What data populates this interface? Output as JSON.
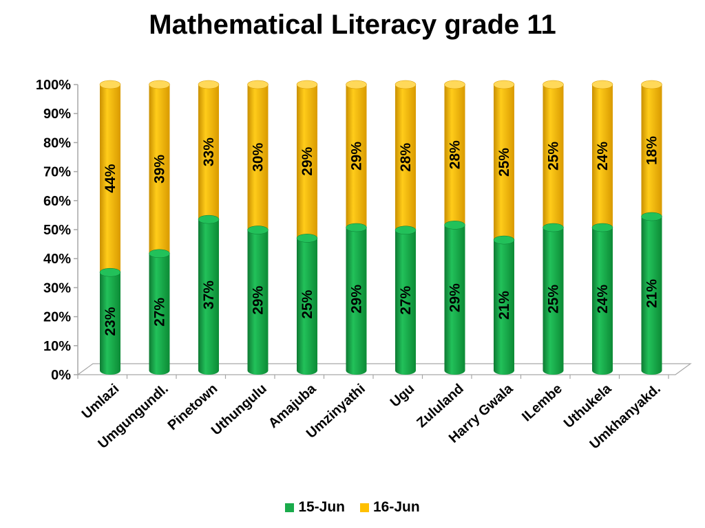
{
  "chart_data": {
    "type": "bar",
    "title": "Mathematical Literacy grade 11",
    "stacking": "percent",
    "orientation": "vertical",
    "categories": [
      "Umlazi",
      "Umgungundl.",
      "Pinetown",
      "Uthungulu",
      "Amajuba",
      "Umzinyathi",
      "Ugu",
      "Zululand",
      "Harry Gwala",
      "ILembe",
      "Uthukela",
      "Umkhanyakd."
    ],
    "series": [
      {
        "name": "15-Jun",
        "color": "#1aab4b",
        "values": [
          23,
          27,
          37,
          29,
          25,
          29,
          27,
          29,
          21,
          25,
          24,
          21
        ]
      },
      {
        "name": "16-Jun",
        "color": "#ffc000",
        "values": [
          44,
          39,
          33,
          30,
          29,
          29,
          28,
          28,
          25,
          25,
          24,
          18
        ]
      }
    ],
    "data_labels": {
      "15-Jun": [
        "23%",
        "27%",
        "37%",
        "29%",
        "25%",
        "29%",
        "27%",
        "29%",
        "21%",
        "25%",
        "24%",
        "21%"
      ],
      "16-Jun": [
        "44%",
        "39%",
        "33%",
        "30%",
        "29%",
        "29%",
        "28%",
        "28%",
        "25%",
        "25%",
        "24%",
        "18%"
      ]
    },
    "y_ticks": [
      "0%",
      "10%",
      "20%",
      "30%",
      "40%",
      "50%",
      "60%",
      "70%",
      "80%",
      "90%",
      "100%"
    ],
    "ylim": [
      0,
      100
    ],
    "legend_position": "bottom",
    "grid": false
  }
}
